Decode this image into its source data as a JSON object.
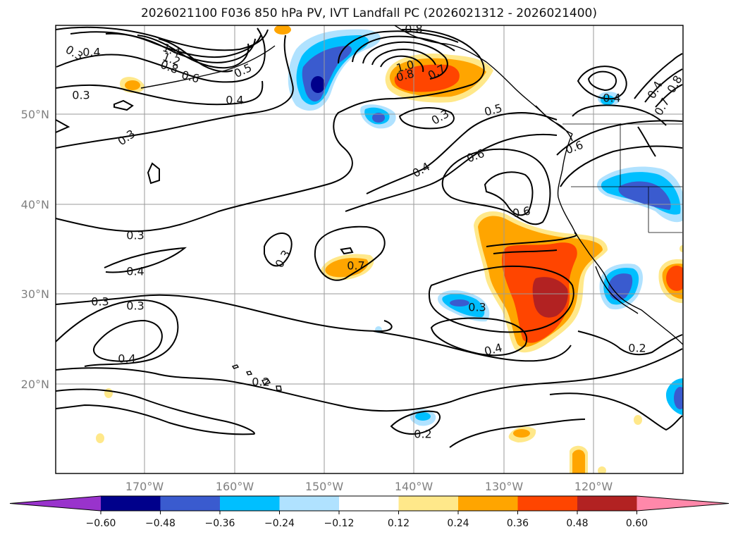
{
  "title": "2026021100 F036 850 hPa PV, IVT Landfall PC (2026021312 - 2026021400)",
  "lat_labels": [
    "50°N",
    "40°N",
    "30°N",
    "20°N"
  ],
  "lon_labels": [
    "170°W",
    "160°W",
    "150°W",
    "140°W",
    "130°W",
    "120°W"
  ],
  "colorbar": {
    "ticks": [
      "−0.60",
      "−0.48",
      "−0.36",
      "−0.24",
      "−0.12",
      "0.12",
      "0.24",
      "0.36",
      "0.48",
      "0.60"
    ],
    "colors": [
      "#9933cc",
      "#00008b",
      "#3a5bcf",
      "#00bfff",
      "#b0e2ff",
      "#ffffff",
      "#ffe88a",
      "#ffa500",
      "#ff4500",
      "#b22222",
      "#ff88aa"
    ]
  },
  "contour_labels": [
    "0.3",
    "1.4",
    "1.2",
    "0.8",
    "0.6",
    "0.5",
    "0.3",
    "0.4",
    "0.3",
    "0.8",
    "1.0",
    "0.8",
    "0.7",
    "0.3",
    "0.5",
    "0.6",
    "0.4",
    "0.6",
    "0.4",
    "0.6",
    "0.7",
    "0.8",
    "0.7",
    "0.3",
    "0.4",
    "0.4",
    "0.3",
    "0.3",
    "0.3",
    "0.3",
    "0.4",
    "0.2",
    "0.2",
    "0.4",
    "0.2",
    "0.4"
  ]
}
